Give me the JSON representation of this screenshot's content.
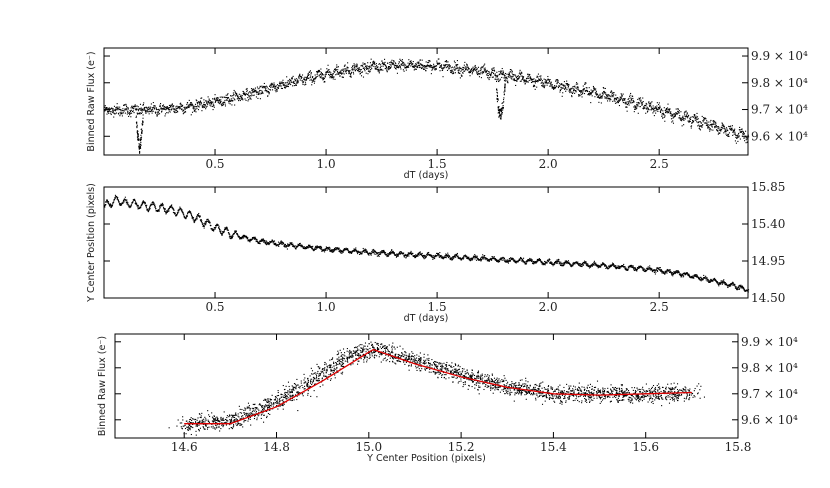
{
  "chart_data": [
    {
      "type": "scatter",
      "panel": "top",
      "xlabel": "dT (days)",
      "ylabel": "Binned Raw Flux (e⁻)",
      "xlim": [
        0.0,
        2.9
      ],
      "ylim": [
        95300,
        99300
      ],
      "xticks": [
        0.5,
        1.0,
        1.5,
        2.0,
        2.5
      ],
      "xtick_labels": [
        "0.5",
        "1.0",
        "1.5",
        "2.0",
        "2.5"
      ],
      "yticks": [
        96000,
        97000,
        98000,
        99000
      ],
      "ytick_labels": [
        "9.6 × 10⁴",
        "9.7 × 10⁴",
        "9.8 × 10⁴",
        "9.9 × 10⁴"
      ],
      "ytick_side": "right",
      "marker_color": "#000000",
      "series": [
        {
          "x": [
            0.0,
            0.1,
            0.2,
            0.3,
            0.4,
            0.5,
            0.6,
            0.7,
            0.8,
            0.9,
            1.0,
            1.1,
            1.2,
            1.3,
            1.4,
            1.5,
            1.6,
            1.7,
            1.76,
            1.84,
            1.9,
            2.0,
            2.1,
            2.2,
            2.3,
            2.4,
            2.5,
            2.6,
            2.7,
            2.8,
            2.9
          ],
          "y": [
            97000,
            97000,
            97000,
            97050,
            97150,
            97300,
            97500,
            97700,
            97950,
            98150,
            98350,
            98500,
            98600,
            98650,
            98680,
            98650,
            98550,
            98420,
            98300,
            98250,
            98150,
            98000,
            97800,
            97650,
            97450,
            97250,
            97000,
            96750,
            96500,
            96250,
            96000
          ]
        }
      ],
      "dips": [
        {
          "x": [
            0.142,
            0.15,
            0.158,
            0.166,
            0.174
          ],
          "y": [
            96700,
            96000,
            95500,
            96000,
            96700
          ]
        },
        {
          "x": [
            1.765,
            1.775,
            1.785,
            1.795,
            1.805
          ],
          "y": [
            97800,
            97000,
            96800,
            97200,
            98000
          ]
        }
      ]
    },
    {
      "type": "scatter",
      "panel": "middle",
      "xlabel": "dT (days)",
      "ylabel": "Y Center Position (pixels)",
      "xlim": [
        0.0,
        2.9
      ],
      "ylim": [
        14.5,
        15.85
      ],
      "xticks": [
        0.5,
        1.0,
        1.5,
        2.0,
        2.5
      ],
      "xtick_labels": [
        "0.5",
        "1.0",
        "1.5",
        "2.0",
        "2.5"
      ],
      "yticks": [
        14.5,
        14.95,
        15.4,
        15.85
      ],
      "ytick_labels": [
        "14.50",
        "14.95",
        "15.40",
        "15.85"
      ],
      "ytick_side": "right",
      "marker_color": "#000000",
      "series": [
        {
          "x": [
            0.0,
            0.05,
            0.1,
            0.2,
            0.3,
            0.4,
            0.5,
            0.6,
            0.7,
            0.8,
            0.9,
            1.0,
            1.2,
            1.4,
            1.6,
            1.8,
            2.0,
            2.2,
            2.4,
            2.5,
            2.6,
            2.7,
            2.8,
            2.9
          ],
          "y": [
            15.62,
            15.7,
            15.66,
            15.62,
            15.58,
            15.5,
            15.36,
            15.26,
            15.2,
            15.16,
            15.13,
            15.1,
            15.06,
            15.03,
            15.0,
            14.97,
            14.94,
            14.91,
            14.87,
            14.84,
            14.8,
            14.74,
            14.68,
            14.6
          ]
        }
      ]
    },
    {
      "type": "scatter",
      "panel": "bottom",
      "xlabel": "Y Center Position (pixels)",
      "ylabel": "Binned Raw Flux (e⁻)",
      "xlim": [
        14.45,
        15.8
      ],
      "ylim": [
        95300,
        99300
      ],
      "xticks": [
        14.6,
        14.8,
        15.0,
        15.2,
        15.4,
        15.6,
        15.8
      ],
      "xtick_labels": [
        "14.6",
        "14.8",
        "15.0",
        "15.2",
        "15.4",
        "15.6",
        "15.8"
      ],
      "yticks": [
        96000,
        97000,
        98000,
        99000
      ],
      "ytick_labels": [
        "9.6 × 10⁴",
        "9.7 × 10⁴",
        "9.8 × 10⁴",
        "9.9 × 10⁴"
      ],
      "ytick_side": "right",
      "marker_color": "#000000",
      "series": [
        {
          "x": [
            14.6,
            14.65,
            14.7,
            14.75,
            14.8,
            14.85,
            14.9,
            14.95,
            15.0,
            15.02,
            15.05,
            15.1,
            15.15,
            15.2,
            15.3,
            15.4,
            15.5,
            15.6,
            15.7
          ],
          "y": [
            95850,
            95850,
            96000,
            96300,
            96700,
            97200,
            97800,
            98400,
            98700,
            98750,
            98550,
            98300,
            98000,
            97700,
            97300,
            97000,
            97000,
            97000,
            97050
          ]
        }
      ],
      "fit": {
        "color": "#dd0000",
        "x": [
          14.6,
          14.7,
          14.8,
          14.9,
          15.0,
          15.01,
          15.1,
          15.2,
          15.3,
          15.4,
          15.5,
          15.6,
          15.7
        ],
        "y": [
          95850,
          95850,
          96500,
          97500,
          98600,
          98700,
          98150,
          97650,
          97250,
          97000,
          96950,
          97000,
          97050
        ]
      }
    }
  ]
}
